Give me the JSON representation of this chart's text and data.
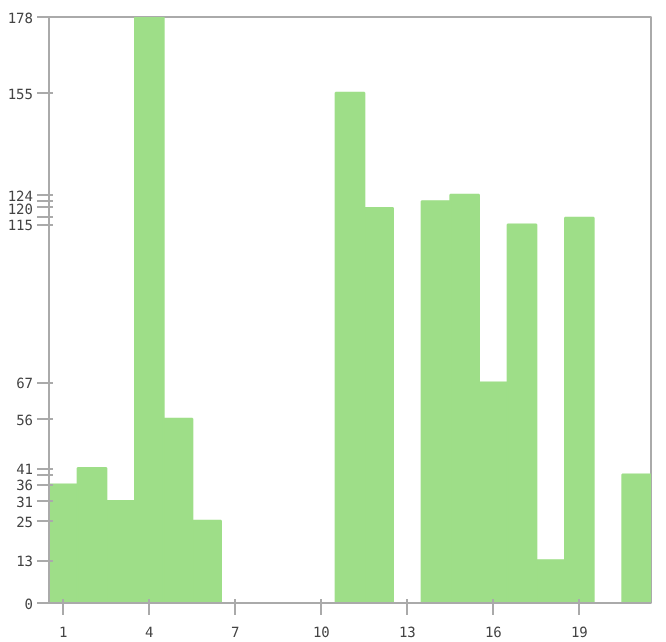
{
  "chart_data": {
    "type": "bar",
    "x": [
      1,
      2,
      3,
      4,
      5,
      6,
      7,
      8,
      9,
      10,
      11,
      12,
      13,
      14,
      15,
      16,
      17,
      18,
      19,
      20,
      21
    ],
    "values": [
      36,
      41,
      31,
      178,
      56,
      25,
      0,
      0,
      0,
      0,
      155,
      120,
      0,
      122,
      124,
      67,
      115,
      13,
      117,
      0,
      39
    ],
    "color": "#9ede88",
    "xlim": [
      0.5,
      21.5
    ],
    "xticks": [
      1,
      4,
      7,
      10,
      13,
      16,
      19
    ],
    "ylim": [
      0,
      178
    ],
    "yticks": [
      0,
      13,
      25,
      31,
      36,
      {
        "value": 39,
        "label": null
      },
      41,
      56,
      67,
      115,
      {
        "value": 117,
        "label": null
      },
      120,
      {
        "value": 122,
        "label": null
      },
      124,
      155,
      178
    ],
    "grid": false
  }
}
